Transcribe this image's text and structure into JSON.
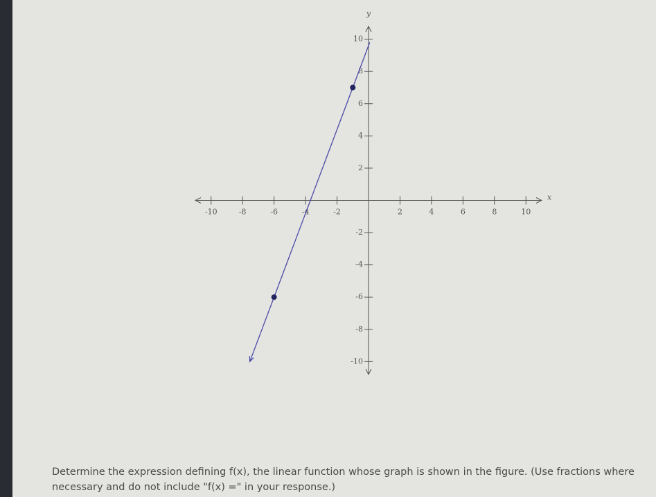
{
  "chart_data": {
    "type": "line",
    "x_label": "x",
    "y_label": "y",
    "xlim": [
      -11,
      11
    ],
    "ylim": [
      -10.8,
      10.8
    ],
    "xticks": [
      -10,
      -8,
      -6,
      -4,
      -2,
      2,
      4,
      6,
      8,
      10
    ],
    "yticks": [
      -10,
      -8,
      -6,
      -4,
      -2,
      2,
      4,
      6,
      8,
      10
    ],
    "x": [
      -6,
      -1
    ],
    "values": [
      -6,
      7
    ],
    "color": "#4a4aa8",
    "point_color": "#23235e"
  },
  "question": {
    "lines": [
      "Determine the expression defining f(x), the linear function whose graph is shown in the figure. (Use fractions where",
      "necessary and do not include \"f(x) =\" in your response.)"
    ]
  }
}
